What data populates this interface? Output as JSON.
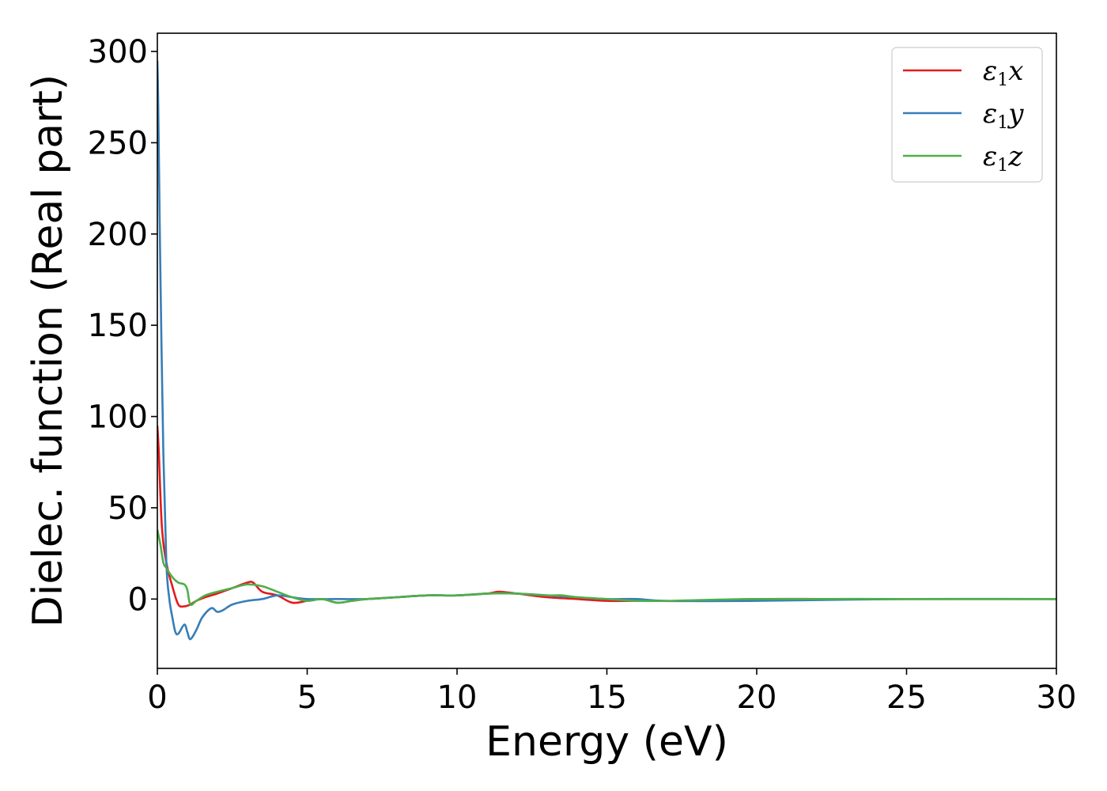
{
  "chart_data": {
    "type": "line",
    "title": "",
    "xlabel": "Energy (eV)",
    "ylabel": "Dielec. function (Real part)",
    "xlim": [
      0,
      30
    ],
    "ylim": [
      -38,
      310
    ],
    "xticks": [
      0,
      5,
      10,
      15,
      20,
      25,
      30
    ],
    "yticks": [
      0,
      50,
      100,
      150,
      200,
      250,
      300
    ],
    "xtick_labels": [
      "0",
      "5",
      "10",
      "15",
      "20",
      "25",
      "30"
    ],
    "ytick_labels": [
      "0",
      "50",
      "100",
      "150",
      "200",
      "250",
      "300"
    ],
    "grid": false,
    "legend_position": "top-right",
    "series": [
      {
        "name": "ε1x",
        "legend": {
          "base": "ε",
          "sub": "1",
          "suffix": "x"
        },
        "color": "#e41a1c",
        "x": [
          0.0,
          0.05,
          0.15,
          0.3,
          0.5,
          0.7,
          0.9,
          1.1,
          1.3,
          1.6,
          2.0,
          2.5,
          3.0,
          3.2,
          3.5,
          4.0,
          4.5,
          5.0,
          5.5,
          6.0,
          6.5,
          7.0,
          8.0,
          9.0,
          10.0,
          11.0,
          11.4,
          12.0,
          13.0,
          14.0,
          15.0,
          16.0,
          18.0,
          20.0,
          23.0,
          25.0,
          27.0,
          30.0
        ],
        "y": [
          95,
          80,
          40,
          20,
          7,
          -3,
          -4,
          -3,
          -1,
          1,
          3,
          6,
          9,
          9,
          4,
          2,
          -2,
          -1,
          0,
          -2,
          -1,
          0,
          1,
          2,
          2,
          3,
          4,
          3,
          1,
          0,
          -1,
          -1,
          -1,
          0,
          0,
          0,
          0,
          0
        ]
      },
      {
        "name": "ε1y",
        "legend": {
          "base": "ε",
          "sub": "1",
          "suffix": "y"
        },
        "color": "#377eb8",
        "x": [
          0.0,
          0.03,
          0.1,
          0.2,
          0.3,
          0.4,
          0.5,
          0.6,
          0.7,
          0.9,
          1.0,
          1.1,
          1.3,
          1.5,
          1.8,
          2.0,
          2.2,
          2.5,
          3.0,
          3.5,
          4.0,
          4.5,
          5.0,
          6.0,
          7.0,
          8.0,
          9.0,
          10.0,
          11.0,
          12.0,
          13.0,
          14.0,
          15.0,
          16.0,
          17.0,
          20.0,
          25.0,
          30.0
        ],
        "y": [
          295,
          270,
          180,
          80,
          20,
          0,
          -10,
          -18,
          -19,
          -14,
          -18,
          -22,
          -17,
          -10,
          -5,
          -7,
          -6,
          -3,
          -1,
          0,
          2,
          1,
          0,
          0,
          0,
          1,
          2,
          2,
          3,
          3,
          2,
          1,
          0,
          0,
          -1,
          -1,
          0,
          0
        ]
      },
      {
        "name": "ε1z",
        "legend": {
          "base": "ε",
          "sub": "1",
          "suffix": "z"
        },
        "color": "#4daf4a",
        "x": [
          0.0,
          0.1,
          0.2,
          0.3,
          0.5,
          0.7,
          0.9,
          1.0,
          1.1,
          1.3,
          1.6,
          2.0,
          2.5,
          3.0,
          3.5,
          4.0,
          4.5,
          5.0,
          5.5,
          6.0,
          6.5,
          7.0,
          8.0,
          9.0,
          10.0,
          11.0,
          12.0,
          13.0,
          13.5,
          14.0,
          15.0,
          16.0,
          17.0,
          20.0,
          25.0,
          30.0
        ],
        "y": [
          38,
          30,
          20,
          17,
          12,
          9,
          8,
          5,
          -3,
          -1,
          2,
          4,
          6,
          8,
          7,
          4,
          1,
          -1,
          0,
          -2,
          -1,
          0,
          1,
          2,
          2,
          3,
          3,
          2,
          2,
          1,
          0,
          -1,
          -1,
          0,
          0,
          0
        ]
      }
    ]
  }
}
